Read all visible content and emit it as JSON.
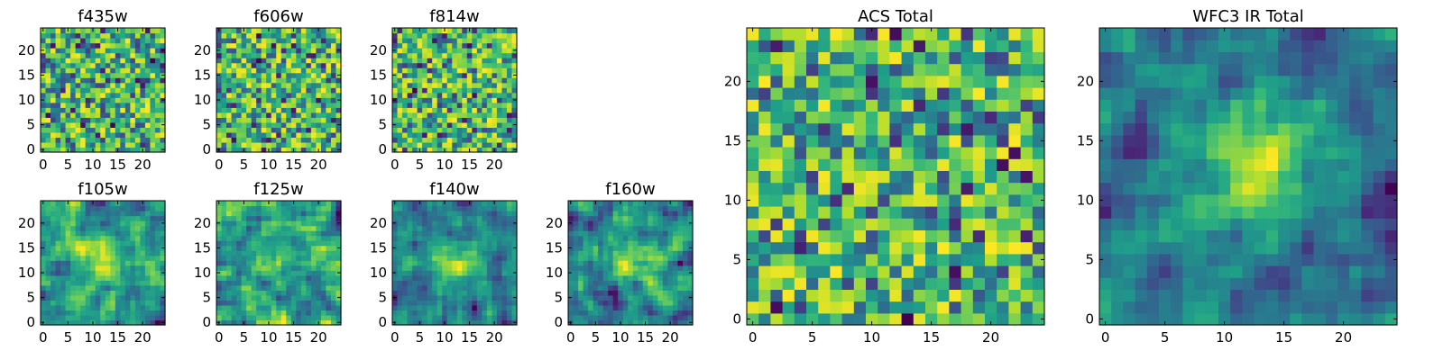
{
  "chart_data": [
    {
      "type": "heatmap",
      "title": "f435w",
      "grid_size": 25,
      "xticks": [
        0,
        5,
        10,
        15,
        20
      ],
      "yticks": [
        0,
        5,
        10,
        15,
        20
      ],
      "xlim": [
        -0.5,
        24.5
      ],
      "ylim": [
        -0.5,
        24.5
      ],
      "colormap": "viridis",
      "pattern": "noise",
      "seed": 11
    },
    {
      "type": "heatmap",
      "title": "f606w",
      "grid_size": 25,
      "xticks": [
        0,
        5,
        10,
        15,
        20
      ],
      "yticks": [
        0,
        5,
        10,
        15,
        20
      ],
      "xlim": [
        -0.5,
        24.5
      ],
      "ylim": [
        -0.5,
        24.5
      ],
      "colormap": "viridis",
      "pattern": "noise",
      "seed": 23
    },
    {
      "type": "heatmap",
      "title": "f814w",
      "grid_size": 25,
      "xticks": [
        0,
        5,
        10,
        15,
        20
      ],
      "yticks": [
        0,
        5,
        10,
        15,
        20
      ],
      "xlim": [
        -0.5,
        24.5
      ],
      "ylim": [
        -0.5,
        24.5
      ],
      "colormap": "viridis",
      "pattern": "noise",
      "seed": 37
    },
    {
      "type": "heatmap",
      "title": "f105w",
      "grid_size": 25,
      "xticks": [
        0,
        5,
        10,
        15,
        20
      ],
      "yticks": [
        0,
        5,
        10,
        15,
        20
      ],
      "xlim": [
        -0.5,
        24.5
      ],
      "ylim": [
        -0.5,
        24.5
      ],
      "colormap": "viridis",
      "pattern": "smooth_peak",
      "seed": 41
    },
    {
      "type": "heatmap",
      "title": "f125w",
      "grid_size": 25,
      "xticks": [
        0,
        5,
        10,
        15,
        20
      ],
      "yticks": [
        0,
        5,
        10,
        15,
        20
      ],
      "xlim": [
        -0.5,
        24.5
      ],
      "ylim": [
        -0.5,
        24.5
      ],
      "colormap": "viridis",
      "pattern": "smooth_noise",
      "seed": 53
    },
    {
      "type": "heatmap",
      "title": "f140w",
      "grid_size": 25,
      "xticks": [
        0,
        5,
        10,
        15,
        20
      ],
      "yticks": [
        0,
        5,
        10,
        15,
        20
      ],
      "xlim": [
        -0.5,
        24.5
      ],
      "ylim": [
        -0.5,
        24.5
      ],
      "colormap": "viridis",
      "pattern": "smooth_peak",
      "seed": 67
    },
    {
      "type": "heatmap",
      "title": "f160w",
      "grid_size": 25,
      "xticks": [
        0,
        5,
        10,
        15,
        20
      ],
      "yticks": [
        0,
        5,
        10,
        15,
        20
      ],
      "xlim": [
        -0.5,
        24.5
      ],
      "ylim": [
        -0.5,
        24.5
      ],
      "colormap": "viridis",
      "pattern": "smooth_peak",
      "seed": 79
    },
    {
      "type": "heatmap",
      "title": "ACS Total",
      "grid_size": 25,
      "xticks": [
        0,
        5,
        10,
        15,
        20
      ],
      "yticks": [
        0,
        5,
        10,
        15,
        20
      ],
      "xlim": [
        -0.5,
        24.5
      ],
      "ylim": [
        -0.5,
        24.5
      ],
      "colormap": "viridis",
      "pattern": "noise_bright",
      "seed": 97
    },
    {
      "type": "heatmap",
      "title": "WFC3 IR Total",
      "grid_size": 25,
      "xticks": [
        0,
        5,
        10,
        15,
        20
      ],
      "yticks": [
        0,
        5,
        10,
        15,
        20
      ],
      "xlim": [
        -0.5,
        24.5
      ],
      "ylim": [
        -0.5,
        24.5
      ],
      "colormap": "viridis",
      "pattern": "smooth_peak_strong",
      "seed": 113
    }
  ]
}
